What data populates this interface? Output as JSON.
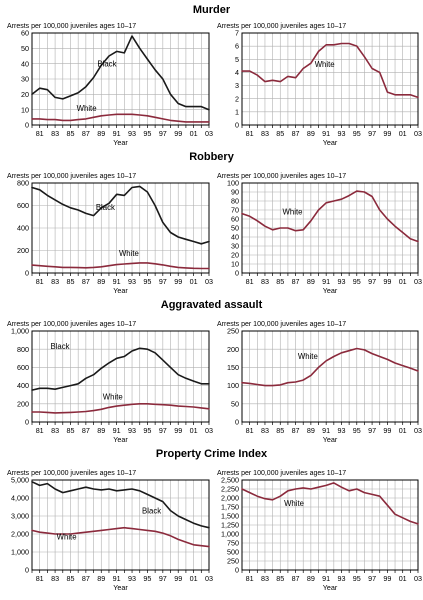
{
  "colors": {
    "black_series": "#1a1a1a",
    "white_series": "#8b2a3c",
    "grid": "#b0b0b0",
    "frame": "#000000"
  },
  "chart_data": [
    {
      "title": "Murder",
      "charts": [
        {
          "type": "line",
          "ylabel": "Arrests per 100,000 juveniles ages 10–17",
          "xlabel": "Year",
          "ylim": [
            0,
            60
          ],
          "yticks": [
            "0",
            "10",
            "20",
            "30",
            "40",
            "50",
            "60"
          ],
          "xlim": [
            1980,
            2003
          ],
          "xticks": [
            "81",
            "83",
            "85",
            "87",
            "89",
            "91",
            "93",
            "95",
            "97",
            "99",
            "01",
            "03"
          ],
          "grid": true,
          "x": [
            1980,
            1981,
            1982,
            1983,
            1984,
            1985,
            1986,
            1987,
            1988,
            1989,
            1990,
            1991,
            1992,
            1993,
            1994,
            1995,
            1996,
            1997,
            1998,
            1999,
            2000,
            2001,
            2002,
            2003
          ],
          "series": [
            {
              "name": "Black",
              "label_at": [
                1988.5,
                38
              ],
              "values": [
                20,
                24,
                23,
                18,
                17,
                19,
                21,
                25,
                31,
                39,
                45,
                48,
                47,
                58,
                50,
                43,
                36,
                30,
                20,
                14,
                12,
                12,
                12,
                10
              ]
            },
            {
              "name": "White",
              "label_at": [
                1985.8,
                9
              ],
              "values": [
                4,
                4,
                3.5,
                3.5,
                3,
                3,
                3.5,
                4,
                5,
                6,
                6.5,
                7,
                7,
                7,
                6.5,
                6,
                5,
                4,
                3,
                2.5,
                2,
                2,
                2,
                2
              ]
            }
          ]
        },
        {
          "type": "line",
          "ylabel": "Arrests per 100,000 juveniles ages 10–17",
          "xlabel": "Year",
          "ylim": [
            0,
            7
          ],
          "yticks": [
            "0",
            "1",
            "2",
            "3",
            "4",
            "5",
            "6",
            "7"
          ],
          "xlim": [
            1980,
            2003
          ],
          "xticks": [
            "81",
            "83",
            "85",
            "87",
            "89",
            "91",
            "93",
            "95",
            "97",
            "99",
            "01",
            "03"
          ],
          "grid": true,
          "x": [
            1980,
            1981,
            1982,
            1983,
            1984,
            1985,
            1986,
            1987,
            1988,
            1989,
            1990,
            1991,
            1992,
            1993,
            1994,
            1995,
            1996,
            1997,
            1998,
            1999,
            2000,
            2001,
            2002,
            2003
          ],
          "series": [
            {
              "name": "White",
              "label_at": [
                1989.5,
                4.4
              ],
              "values": [
                4.1,
                4.1,
                3.8,
                3.3,
                3.4,
                3.3,
                3.7,
                3.6,
                4.3,
                4.7,
                5.6,
                6.1,
                6.1,
                6.2,
                6.2,
                6.0,
                5.2,
                4.3,
                4.0,
                2.5,
                2.3,
                2.3,
                2.3,
                2.1
              ]
            }
          ]
        }
      ]
    },
    {
      "title": "Robbery",
      "charts": [
        {
          "type": "line",
          "ylabel": "Arrests per 100,000 juveniles ages 10–17",
          "xlabel": "Year",
          "ylim": [
            0,
            800
          ],
          "yticks": [
            "0",
            "200",
            "400",
            "600",
            "800"
          ],
          "xlim": [
            1980,
            2003
          ],
          "xticks": [
            "81",
            "83",
            "85",
            "87",
            "89",
            "91",
            "93",
            "95",
            "97",
            "99",
            "01",
            "03"
          ],
          "grid": true,
          "x": [
            1980,
            1981,
            1982,
            1983,
            1984,
            1985,
            1986,
            1987,
            1988,
            1989,
            1990,
            1991,
            1992,
            1993,
            1994,
            1995,
            1996,
            1997,
            1998,
            1999,
            2000,
            2001,
            2002,
            2003
          ],
          "series": [
            {
              "name": "Black",
              "label_at": [
                1988.3,
                560
              ],
              "values": [
                760,
                740,
                690,
                650,
                610,
                580,
                560,
                530,
                510,
                580,
                620,
                700,
                690,
                760,
                770,
                720,
                600,
                450,
                360,
                320,
                300,
                280,
                260,
                280
              ]
            },
            {
              "name": "White",
              "label_at": [
                1991.3,
                150
              ],
              "values": [
                70,
                65,
                60,
                55,
                50,
                50,
                48,
                46,
                50,
                55,
                65,
                75,
                80,
                85,
                90,
                90,
                82,
                72,
                60,
                50,
                45,
                42,
                40,
                40
              ]
            }
          ]
        },
        {
          "type": "line",
          "ylabel": "Arrests per 100,000 juveniles ages 10–17",
          "xlabel": "Year",
          "ylim": [
            0,
            100
          ],
          "yticks": [
            "0",
            "10",
            "20",
            "30",
            "40",
            "50",
            "60",
            "70",
            "80",
            "90",
            "100"
          ],
          "xlim": [
            1980,
            2003
          ],
          "xticks": [
            "81",
            "83",
            "85",
            "87",
            "89",
            "91",
            "93",
            "95",
            "97",
            "99",
            "01",
            "03"
          ],
          "grid": true,
          "x": [
            1980,
            1981,
            1982,
            1983,
            1984,
            1985,
            1986,
            1987,
            1988,
            1989,
            1990,
            1991,
            1992,
            1993,
            1994,
            1995,
            1996,
            1997,
            1998,
            1999,
            2000,
            2001,
            2002,
            2003
          ],
          "series": [
            {
              "name": "White",
              "label_at": [
                1985.3,
                65
              ],
              "values": [
                66,
                63,
                58,
                52,
                48,
                50,
                50,
                47,
                48,
                58,
                70,
                78,
                80,
                82,
                86,
                91,
                90,
                85,
                70,
                60,
                52,
                45,
                38,
                35
              ]
            }
          ]
        }
      ]
    },
    {
      "title": "Aggravated assault",
      "charts": [
        {
          "type": "line",
          "ylabel": "Arrests per 100,000 juveniles ages 10–17",
          "xlabel": "Year",
          "ylim": [
            0,
            1000
          ],
          "yticks": [
            "0",
            "200",
            "400",
            "600",
            "800",
            "1,000"
          ],
          "xlim": [
            1980,
            2003
          ],
          "xticks": [
            "81",
            "83",
            "85",
            "87",
            "89",
            "91",
            "93",
            "95",
            "97",
            "99",
            "01",
            "03"
          ],
          "grid": true,
          "x": [
            1980,
            1981,
            1982,
            1983,
            1984,
            1985,
            1986,
            1987,
            1988,
            1989,
            1990,
            1991,
            1992,
            1993,
            1994,
            1995,
            1996,
            1997,
            1998,
            1999,
            2000,
            2001,
            2002,
            2003
          ],
          "series": [
            {
              "name": "Black",
              "label_at": [
                1982.4,
                800
              ],
              "values": [
                350,
                370,
                370,
                360,
                380,
                400,
                420,
                480,
                520,
                590,
                650,
                700,
                720,
                780,
                810,
                800,
                760,
                680,
                600,
                520,
                480,
                450,
                420,
                420
              ]
            },
            {
              "name": "White",
              "label_at": [
                1989.2,
                250
              ],
              "values": [
                110,
                110,
                105,
                100,
                102,
                105,
                110,
                115,
                125,
                140,
                160,
                175,
                185,
                195,
                200,
                200,
                195,
                190,
                185,
                175,
                170,
                165,
                155,
                145
              ]
            }
          ]
        },
        {
          "type": "line",
          "ylabel": "Arrests per 100,000 juveniles ages 10–17",
          "xlabel": "Year",
          "ylim": [
            0,
            250
          ],
          "yticks": [
            "0",
            "50",
            "100",
            "150",
            "200",
            "250"
          ],
          "xlim": [
            1980,
            2003
          ],
          "xticks": [
            "81",
            "83",
            "85",
            "87",
            "89",
            "91",
            "93",
            "95",
            "97",
            "99",
            "01",
            "03"
          ],
          "grid": true,
          "x": [
            1980,
            1981,
            1982,
            1983,
            1984,
            1985,
            1986,
            1987,
            1988,
            1989,
            1990,
            1991,
            1992,
            1993,
            1994,
            1995,
            1996,
            1997,
            1998,
            1999,
            2000,
            2001,
            2002,
            2003
          ],
          "series": [
            {
              "name": "White",
              "label_at": [
                1987.3,
                173
              ],
              "values": [
                108,
                106,
                103,
                100,
                100,
                102,
                108,
                110,
                115,
                128,
                150,
                168,
                180,
                190,
                196,
                202,
                198,
                188,
                180,
                172,
                162,
                155,
                148,
                140
              ]
            }
          ]
        }
      ]
    },
    {
      "title": "Property Crime Index",
      "charts": [
        {
          "type": "line",
          "ylabel": "Arrests per 100,000 juveniles ages 10–17",
          "xlabel": "Year",
          "ylim": [
            0,
            5000
          ],
          "yticks": [
            "0",
            "1,000",
            "2,000",
            "3,000",
            "4,000",
            "5,000"
          ],
          "xlim": [
            1980,
            2003
          ],
          "xticks": [
            "81",
            "83",
            "85",
            "87",
            "89",
            "91",
            "93",
            "95",
            "97",
            "99",
            "01",
            "03"
          ],
          "grid": true,
          "x": [
            1980,
            1981,
            1982,
            1983,
            1984,
            1985,
            1986,
            1987,
            1988,
            1989,
            1990,
            1991,
            1992,
            1993,
            1994,
            1995,
            1996,
            1997,
            1998,
            1999,
            2000,
            2001,
            2002,
            2003
          ],
          "series": [
            {
              "name": "Black",
              "label_at": [
                1994.3,
                3150
              ],
              "values": [
                4900,
                4700,
                4800,
                4500,
                4300,
                4400,
                4500,
                4600,
                4500,
                4450,
                4500,
                4400,
                4450,
                4500,
                4400,
                4200,
                4000,
                3800,
                3300,
                3000,
                2800,
                2600,
                2450,
                2350
              ]
            },
            {
              "name": "White",
              "label_at": [
                1983.2,
                1700
              ],
              "values": [
                2200,
                2100,
                2050,
                2000,
                2000,
                2000,
                2050,
                2100,
                2150,
                2200,
                2250,
                2300,
                2350,
                2300,
                2250,
                2200,
                2150,
                2050,
                1900,
                1700,
                1550,
                1400,
                1350,
                1300
              ]
            }
          ]
        },
        {
          "type": "line",
          "ylabel": "Arrests per 100,000 juveniles ages 10–17",
          "xlabel": "Year",
          "ylim": [
            0,
            2500
          ],
          "yticks": [
            "0",
            "250",
            "500",
            "750",
            "1,000",
            "1,250",
            "1,500",
            "1,750",
            "2,000",
            "2,250",
            "2,500"
          ],
          "xlim": [
            1980,
            2003
          ],
          "xticks": [
            "81",
            "83",
            "85",
            "87",
            "89",
            "91",
            "93",
            "95",
            "97",
            "99",
            "01",
            "03"
          ],
          "grid": true,
          "x": [
            1980,
            1981,
            1982,
            1983,
            1984,
            1985,
            1986,
            1987,
            1988,
            1989,
            1990,
            1991,
            1992,
            1993,
            1994,
            1995,
            1996,
            1997,
            1998,
            1999,
            2000,
            2001,
            2002,
            2003
          ],
          "series": [
            {
              "name": "White",
              "label_at": [
                1985.5,
                1780
              ],
              "values": [
                2250,
                2150,
                2050,
                1980,
                1950,
                2050,
                2200,
                2250,
                2280,
                2250,
                2300,
                2350,
                2420,
                2300,
                2200,
                2250,
                2150,
                2100,
                2050,
                1800,
                1550,
                1450,
                1350,
                1280
              ]
            }
          ]
        }
      ]
    }
  ]
}
